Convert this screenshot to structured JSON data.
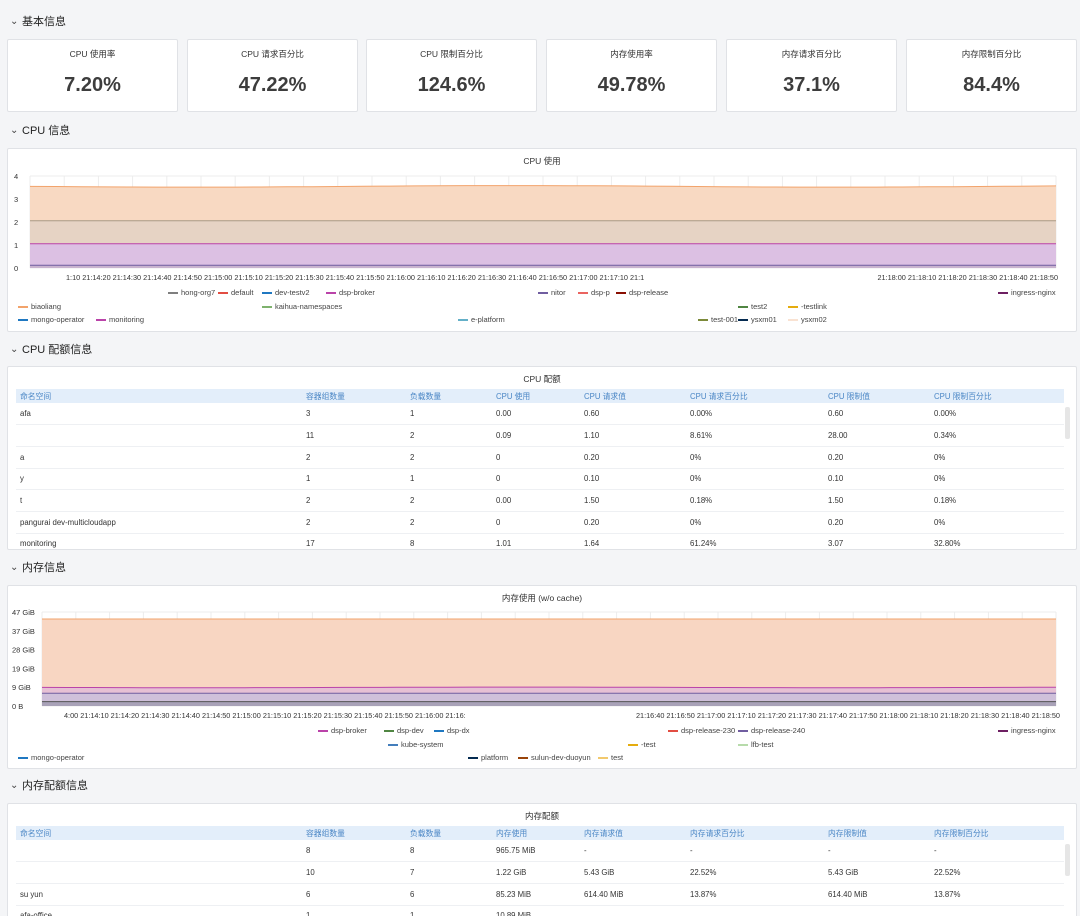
{
  "sections": {
    "basic": "基本信息",
    "cpu": "CPU 信息",
    "cpu_quota": "CPU 配额信息",
    "mem": "内存信息",
    "mem_quota": "内存配额信息"
  },
  "stats": [
    {
      "title": "CPU 使用率",
      "value": "7.20%"
    },
    {
      "title": "CPU 请求百分比",
      "value": "47.22%"
    },
    {
      "title": "CPU 限制百分比",
      "value": "124.6%"
    },
    {
      "title": "内存使用率",
      "value": "49.78%"
    },
    {
      "title": "内存请求百分比",
      "value": "37.1%"
    },
    {
      "title": "内存限制百分比",
      "value": "84.4%"
    }
  ],
  "cpu_chart": {
    "title": "CPU 使用",
    "x_ticks_left": "1:10 21:14:20 21:14:30 21:14:40 21:14:50 21:15:00 21:15:10 21:15:20 21:15:30 21:15:40 21:15:50 21:16:00 21:16:10 21:16:20 21:16:30 21:16:40 21:16:50 21:17:00 21:17:10 21:1",
    "x_ticks_right": "21:18:00 21:18:10 21:18:20 21:18:30 21:18:40 21:18:50",
    "legend": [
      {
        "label": "biaoliang",
        "color": "#f2a36b"
      },
      {
        "label": "hong-org7",
        "color": "#7f7f7f"
      },
      {
        "label": "default",
        "color": "#e24d42"
      },
      {
        "label": "dev-testv2",
        "color": "#1f78c1"
      },
      {
        "label": "dsp-broker",
        "color": "#ba43a9"
      },
      {
        "label": "nitor",
        "color": "#705da0"
      },
      {
        "label": "dsp-p",
        "color": "#ea6460"
      },
      {
        "label": "dsp-release",
        "color": "#890f02"
      },
      {
        "label": "test2",
        "color": "#508642"
      },
      {
        "label": "-testlink",
        "color": "#e5ac0e"
      },
      {
        "label": "ingress-nginx",
        "color": "#6d1f62"
      },
      {
        "label": "kaihua-namespaces",
        "color": "#7eb26d"
      },
      {
        "label": "mongo-operator",
        "color": "#1f78c1"
      },
      {
        "label": "monitoring",
        "color": "#ba43a9"
      },
      {
        "label": "e-platform",
        "color": "#64b0c8"
      },
      {
        "label": "test-001",
        "color": "#7c8a3a"
      },
      {
        "label": "ysxm01",
        "color": "#052b51"
      },
      {
        "label": "ysxm02",
        "color": "#f9e2d2"
      }
    ],
    "y_ticks": [
      "4",
      "3",
      "2",
      "1",
      "0"
    ],
    "y_min": 0,
    "y_max": 4,
    "series_top": [
      3.55,
      2.05,
      1.05,
      0.12
    ]
  },
  "cpu_table": {
    "title": "CPU 配额",
    "columns": [
      "命名空间",
      "容器组数量",
      "负载数量",
      "CPU 使用",
      "CPU 请求值",
      "CPU 请求百分比",
      "CPU 限制值",
      "CPU 限制百分比"
    ],
    "rows": [
      [
        "afa",
        "3",
        "1",
        "0.00",
        "0.60",
        "0.00%",
        "0.60",
        "0.00%"
      ],
      [
        "",
        "11",
        "2",
        "0.09",
        "1.10",
        "8.61%",
        "28.00",
        "0.34%"
      ],
      [
        "a",
        "2",
        "2",
        "0",
        "0.20",
        "0%",
        "0.20",
        "0%"
      ],
      [
        "y",
        "1",
        "1",
        "0",
        "0.10",
        "0%",
        "0.10",
        "0%"
      ],
      [
        "t",
        "2",
        "2",
        "0.00",
        "1.50",
        "0.18%",
        "1.50",
        "0.18%"
      ],
      [
        "pangurai dev-multicloudapp",
        "2",
        "2",
        "0",
        "0.20",
        "0%",
        "0.20",
        "0%"
      ],
      [
        "monitoring",
        "17",
        "8",
        "1.01",
        "1.64",
        "61.24%",
        "3.07",
        "32.80%"
      ]
    ]
  },
  "mem_chart": {
    "title": "内存使用 (w/o cache)",
    "x_ticks_left": "4:00 21:14:10 21:14:20 21:14:30 21:14:40 21:14:50 21:15:00 21:15:10 21:15:20 21:15:30 21:15:40 21:15:50 21:16:00 21:16:",
    "x_ticks_right": "21:16:40 21:16:50 21:17:00 21:17:10 21:17:20 21:17:30 21:17:40 21:17:50 21:18:00 21:18:10 21:18:20 21:18:30 21:18:40 21:18:50",
    "legend": [
      {
        "label": "dsp-broker",
        "color": "#ba43a9"
      },
      {
        "label": "dsp-dev",
        "color": "#508642"
      },
      {
        "label": "dsp-dx",
        "color": "#1f78c1"
      },
      {
        "label": "dsp-release-230",
        "color": "#e24d42"
      },
      {
        "label": "dsp-release-240",
        "color": "#705da0"
      },
      {
        "label": "ingress-nginx",
        "color": "#6d1f62"
      },
      {
        "label": "kube-system",
        "color": "#447ebc"
      },
      {
        "label": "-test",
        "color": "#e5ac0e"
      },
      {
        "label": "lfb-test",
        "color": "#b7dbab"
      },
      {
        "label": "mongo-operator",
        "color": "#1f78c1"
      },
      {
        "label": "platform",
        "color": "#052b51"
      },
      {
        "label": "sulun-dev-duoyun",
        "color": "#99440a"
      },
      {
        "label": "test",
        "color": "#f2c96d"
      }
    ],
    "y_ticks": [
      "47 GiB",
      "37 GiB",
      "28 GiB",
      "19 GiB",
      "9 GiB",
      "0 B"
    ],
    "y_min": 0,
    "y_max": 47,
    "series_top": [
      43.5,
      9.3,
      6.4,
      2.2
    ]
  },
  "mem_table": {
    "title": "内存配额",
    "columns": [
      "命名空间",
      "容器组数量",
      "负载数量",
      "内存使用",
      "内存请求值",
      "内存请求百分比",
      "内存限制值",
      "内存限制百分比"
    ],
    "rows": [
      [
        "",
        "8",
        "8",
        "965.75 MiB",
        "-",
        "-",
        "-",
        "-"
      ],
      [
        "",
        "10",
        "7",
        "1.22 GiB",
        "5.43 GiB",
        "22.52%",
        "5.43 GiB",
        "22.52%"
      ],
      [
        "su           yun",
        "6",
        "6",
        "85.23 MiB",
        "614.40 MiB",
        "13.87%",
        "614.40 MiB",
        "13.87%"
      ],
      [
        "afa-office",
        "1",
        "1",
        "10.89 MiB",
        "",
        "",
        "",
        ""
      ]
    ]
  }
}
